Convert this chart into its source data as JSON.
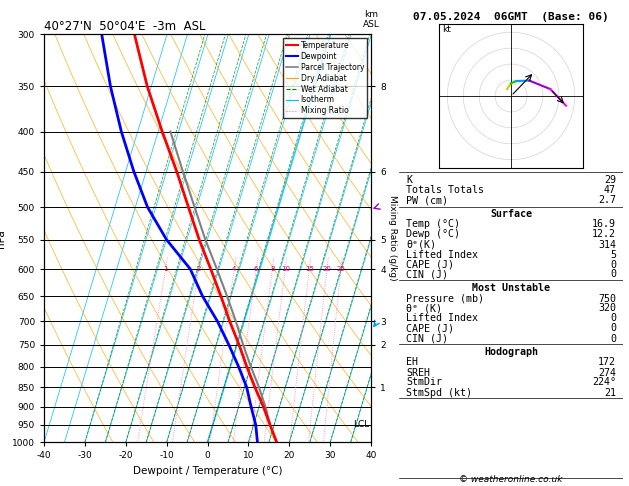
{
  "title_left": "40°27'N  50°04'E  -3m  ASL",
  "title_right": "07.05.2024  06GMT  (Base: 06)",
  "xlabel": "Dewpoint / Temperature (°C)",
  "ylabel_left": "hPa",
  "isotherm_color": "#00bfff",
  "dry_adiabat_color": "#ffa500",
  "wet_adiabat_color": "#008000",
  "mixing_ratio_color": "#ff69b4",
  "temp_color": "#ff0000",
  "dewpoint_color": "#0000ff",
  "parcel_color": "#808080",
  "copyright": "© weatheronline.co.uk",
  "temp_profile_p": [
    1000,
    950,
    900,
    850,
    800,
    750,
    700,
    650,
    600,
    550,
    500,
    450,
    400,
    350,
    300
  ],
  "temp_profile_T": [
    16.9,
    14.0,
    11.0,
    7.5,
    4.0,
    0.5,
    -3.5,
    -7.5,
    -12.0,
    -17.0,
    -22.0,
    -27.5,
    -34.0,
    -41.0,
    -48.0
  ],
  "dewp_profile_p": [
    1000,
    950,
    900,
    850,
    800,
    750,
    700,
    650,
    600,
    550,
    500,
    450,
    400,
    350,
    300
  ],
  "dewp_profile_T": [
    12.2,
    10.5,
    8.0,
    5.5,
    2.0,
    -2.0,
    -6.5,
    -12.0,
    -17.0,
    -25.0,
    -32.0,
    -38.0,
    -44.0,
    -50.0,
    -56.0
  ],
  "parcel_p": [
    950,
    900,
    850,
    800,
    750,
    700,
    650,
    600,
    550,
    500,
    450,
    400
  ],
  "parcel_T": [
    14.0,
    11.5,
    8.5,
    5.0,
    1.5,
    -2.0,
    -6.0,
    -10.5,
    -15.5,
    -20.5,
    -26.0,
    -32.0
  ],
  "wind_levels": [
    1000,
    950,
    850,
    700,
    500,
    300
  ],
  "wind_speeds": [
    5,
    8,
    10,
    15,
    25,
    35
  ],
  "wind_dirs": [
    150,
    180,
    200,
    230,
    260,
    280
  ],
  "wind_colors": [
    "#ffcc00",
    "#cccc00",
    "#00cc00",
    "#0099ff",
    "#9900cc",
    "#ff00ff"
  ],
  "km_tick_p": [
    850,
    750,
    700,
    600,
    550,
    450,
    350
  ],
  "km_tick_v": [
    1,
    2,
    3,
    4,
    5,
    6,
    8
  ],
  "mixing_ratios": [
    1,
    2,
    4,
    6,
    8,
    10,
    15,
    20,
    25
  ],
  "p_ticks": [
    300,
    350,
    400,
    450,
    500,
    550,
    600,
    650,
    700,
    750,
    800,
    850,
    900,
    950,
    1000
  ],
  "x_ticks": [
    -40,
    -30,
    -20,
    -10,
    0,
    10,
    20,
    30,
    40
  ],
  "pres_min": 300,
  "pres_max": 1000,
  "temp_min": -40,
  "temp_max": 40,
  "SKEW": 25,
  "Rd_cp": 0.2854,
  "stats": {
    "K": 29,
    "Totals Totals": 47,
    "PW (cm)": 2.7,
    "surf_temp": 16.9,
    "surf_dewp": 12.2,
    "surf_thetae": 314,
    "surf_li": 5,
    "surf_cape": 0,
    "surf_cin": 0,
    "mu_pres": 750,
    "mu_thetae": 320,
    "mu_li": 0,
    "mu_cape": 0,
    "mu_cin": 0,
    "hodo_eh": 172,
    "hodo_sreh": 274,
    "hodo_stmdir": "224°",
    "hodo_stmspd": 21
  }
}
